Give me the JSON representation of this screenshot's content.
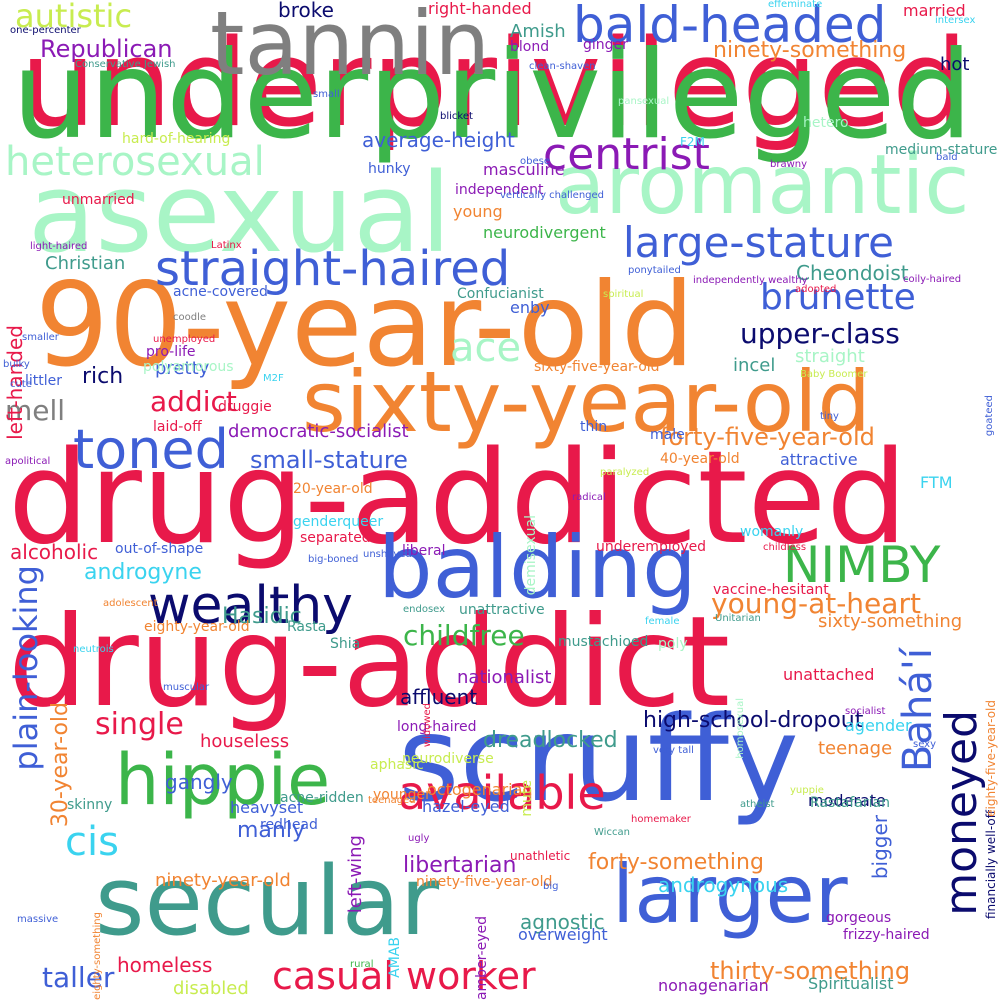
{
  "palette": {
    "red": "#e8194a",
    "blue": "#3f5fd6",
    "green": "#3cb54a",
    "orange": "#f18432",
    "mint": "#a8f5c6",
    "gray": "#7f7f7f",
    "teal": "#3f9b8c",
    "purple": "#8b1ab5",
    "navy": "#0b0b6e",
    "cyan": "#3ad3ef",
    "lime": "#c8ec50"
  },
  "words": [
    {
      "text": "underprivileged",
      "color": "red"
    },
    {
      "text": "underprivileged",
      "color": "green"
    },
    {
      "text": "tannin",
      "color": "gray"
    },
    {
      "text": "asexual",
      "color": "mint"
    },
    {
      "text": "aromantic",
      "color": "mint"
    },
    {
      "text": "90-year-old",
      "color": "orange"
    },
    {
      "text": "sixty-year-old",
      "color": "orange"
    },
    {
      "text": "drug-addicted",
      "color": "red"
    },
    {
      "text": "drug-addict",
      "color": "red"
    },
    {
      "text": "balding",
      "color": "blue"
    },
    {
      "text": "scruffy",
      "color": "blue"
    },
    {
      "text": "secular",
      "color": "teal"
    },
    {
      "text": "larger",
      "color": "blue"
    },
    {
      "text": "hippie",
      "color": "green"
    },
    {
      "text": "bald-headed",
      "color": "blue"
    },
    {
      "text": "heterosexual",
      "color": "mint"
    },
    {
      "text": "centrist",
      "color": "purple"
    },
    {
      "text": "straight-haired",
      "color": "blue"
    },
    {
      "text": "large-stature",
      "color": "blue"
    },
    {
      "text": "brunette",
      "color": "blue"
    },
    {
      "text": "toned",
      "color": "blue"
    },
    {
      "text": "wealthy",
      "color": "navy"
    },
    {
      "text": "NIMBY",
      "color": "green"
    },
    {
      "text": "available",
      "color": "red"
    },
    {
      "text": "casual worker",
      "color": "red"
    },
    {
      "text": "plain-looking",
      "color": "blue"
    },
    {
      "text": "Bahá'í",
      "color": "blue"
    },
    {
      "text": "moneyed",
      "color": "navy"
    },
    {
      "text": "cis",
      "color": "cyan"
    },
    {
      "text": "ace",
      "color": "mint"
    },
    {
      "text": "upper-class",
      "color": "navy"
    },
    {
      "text": "addict",
      "color": "red"
    },
    {
      "text": "mell",
      "color": "gray"
    },
    {
      "text": "autistic",
      "color": "lime"
    },
    {
      "text": "Republican",
      "color": "purple"
    },
    {
      "text": "broke",
      "color": "navy"
    },
    {
      "text": "right-handed",
      "color": "red"
    },
    {
      "text": "Amish",
      "color": "teal"
    },
    {
      "text": "ninety-something",
      "color": "orange"
    },
    {
      "text": "blond",
      "color": "purple"
    },
    {
      "text": "ginger",
      "color": "purple"
    },
    {
      "text": "married",
      "color": "red"
    },
    {
      "text": "hot",
      "color": "navy"
    },
    {
      "text": "average-height",
      "color": "blue"
    },
    {
      "text": "masculine",
      "color": "purple"
    },
    {
      "text": "Cheondoist",
      "color": "teal"
    },
    {
      "text": "small-stature",
      "color": "blue"
    },
    {
      "text": "forty-five-year-old",
      "color": "orange"
    },
    {
      "text": "democratic-socialist",
      "color": "purple"
    },
    {
      "text": "young-at-heart",
      "color": "orange"
    },
    {
      "text": "androgyne",
      "color": "cyan"
    },
    {
      "text": "Hasidic",
      "color": "teal"
    },
    {
      "text": "childfree",
      "color": "green"
    },
    {
      "text": "single",
      "color": "red"
    },
    {
      "text": "houseless",
      "color": "red"
    },
    {
      "text": "high-school-dropout",
      "color": "navy"
    },
    {
      "text": "dreadlocked",
      "color": "teal"
    },
    {
      "text": "libertarian",
      "color": "purple"
    },
    {
      "text": "forty-something",
      "color": "orange"
    },
    {
      "text": "thirty-something",
      "color": "orange"
    },
    {
      "text": "androgynous",
      "color": "cyan"
    },
    {
      "text": "manly",
      "color": "blue"
    },
    {
      "text": "gangly",
      "color": "blue"
    },
    {
      "text": "taller",
      "color": "blue"
    },
    {
      "text": "homeless",
      "color": "red"
    },
    {
      "text": "disabled",
      "color": "lime"
    },
    {
      "text": "30-year-old",
      "color": "orange"
    },
    {
      "text": "left-handed",
      "color": "red"
    },
    {
      "text": "rich",
      "color": "navy"
    },
    {
      "text": "pretty",
      "color": "blue"
    },
    {
      "text": "incel",
      "color": "teal"
    },
    {
      "text": "straight",
      "color": "mint"
    },
    {
      "text": "alcoholic",
      "color": "red"
    },
    {
      "text": "sixty-something",
      "color": "orange"
    },
    {
      "text": "affluent",
      "color": "navy"
    },
    {
      "text": "nationalist",
      "color": "purple"
    },
    {
      "text": "octogenarian",
      "color": "orange"
    },
    {
      "text": "hazel-eyed",
      "color": "blue"
    },
    {
      "text": "heavyset",
      "color": "blue"
    },
    {
      "text": "redhead",
      "color": "blue"
    },
    {
      "text": "ninety-year-old",
      "color": "orange"
    },
    {
      "text": "ninety-five-year-old",
      "color": "orange"
    },
    {
      "text": "agnostic",
      "color": "teal"
    },
    {
      "text": "overweight",
      "color": "blue"
    },
    {
      "text": "Spiritualist",
      "color": "teal"
    },
    {
      "text": "nonagenarian",
      "color": "purple"
    },
    {
      "text": "moderate",
      "color": "navy"
    },
    {
      "text": "bigger",
      "color": "blue"
    },
    {
      "text": "left-wing",
      "color": "purple"
    },
    {
      "text": "financially well-off",
      "color": "navy"
    },
    {
      "text": "eighty-five-year-old",
      "color": "orange"
    },
    {
      "text": "teenage",
      "color": "orange"
    },
    {
      "text": "agender",
      "color": "cyan"
    },
    {
      "text": "unattached",
      "color": "red"
    },
    {
      "text": "Rastafarian",
      "color": "teal"
    },
    {
      "text": "young",
      "color": "orange"
    },
    {
      "text": "independent",
      "color": "purple"
    },
    {
      "text": "neurodivergent",
      "color": "green"
    },
    {
      "text": "Christian",
      "color": "teal"
    },
    {
      "text": "Confucianist",
      "color": "teal"
    },
    {
      "text": "enby",
      "color": "blue"
    },
    {
      "text": "hard-of-hearing",
      "color": "lime"
    },
    {
      "text": "hunky",
      "color": "blue"
    },
    {
      "text": "unmarried",
      "color": "red"
    },
    {
      "text": "acne-covered",
      "color": "blue"
    },
    {
      "text": "pro-life",
      "color": "purple"
    },
    {
      "text": "polyamorous",
      "color": "mint"
    },
    {
      "text": "littler",
      "color": "blue"
    },
    {
      "text": "laid-off",
      "color": "red"
    },
    {
      "text": "druggie",
      "color": "red"
    },
    {
      "text": "sixty-five-year-old",
      "color": "orange"
    },
    {
      "text": "thin",
      "color": "blue"
    },
    {
      "text": "male",
      "color": "blue"
    },
    {
      "text": "40-year-old",
      "color": "orange"
    },
    {
      "text": "attractive",
      "color": "blue"
    },
    {
      "text": "FTM",
      "color": "cyan"
    },
    {
      "text": "20-year-old",
      "color": "orange"
    },
    {
      "text": "genderqueer",
      "color": "cyan"
    },
    {
      "text": "separated",
      "color": "red"
    },
    {
      "text": "liberal",
      "color": "purple"
    },
    {
      "text": "underemployed",
      "color": "red"
    },
    {
      "text": "out-of-shape",
      "color": "blue"
    },
    {
      "text": "womanly",
      "color": "cyan"
    },
    {
      "text": "vaccine-hesitant",
      "color": "red"
    },
    {
      "text": "unattractive",
      "color": "teal"
    },
    {
      "text": "eighty-year-old",
      "color": "orange"
    },
    {
      "text": "Rasta",
      "color": "teal"
    },
    {
      "text": "Shia",
      "color": "teal"
    },
    {
      "text": "mustachioed",
      "color": "teal"
    },
    {
      "text": "poly",
      "color": "mint"
    },
    {
      "text": "long-haired",
      "color": "purple"
    },
    {
      "text": "neurodiverse",
      "color": "lime"
    },
    {
      "text": "aphasic",
      "color": "lime"
    },
    {
      "text": "acne-ridden",
      "color": "teal"
    },
    {
      "text": "younger",
      "color": "orange"
    },
    {
      "text": "skinny",
      "color": "teal"
    },
    {
      "text": "unathletic",
      "color": "red"
    },
    {
      "text": "hetero",
      "color": "mint"
    },
    {
      "text": "F2M",
      "color": "cyan"
    },
    {
      "text": "medium-stature",
      "color": "teal"
    },
    {
      "text": "demisexual",
      "color": "mint"
    },
    {
      "text": "mute",
      "color": "lime"
    },
    {
      "text": "AMAB",
      "color": "cyan"
    },
    {
      "text": "amber-eyed",
      "color": "purple"
    },
    {
      "text": "gorgeous",
      "color": "purple"
    },
    {
      "text": "frizzy-haired",
      "color": "purple"
    },
    {
      "text": "one-percenter",
      "color": "navy"
    },
    {
      "text": "Conservative Jewish",
      "color": "teal"
    },
    {
      "text": "clean-shaven",
      "color": "blue"
    },
    {
      "text": "effeminate",
      "color": "cyan"
    },
    {
      "text": "intersex",
      "color": "cyan"
    },
    {
      "text": "pansexual",
      "color": "mint"
    },
    {
      "text": "brawny",
      "color": "purple"
    },
    {
      "text": "bald",
      "color": "blue"
    },
    {
      "text": "small",
      "color": "blue"
    },
    {
      "text": "blicket",
      "color": "navy"
    },
    {
      "text": "obese",
      "color": "blue"
    },
    {
      "text": "vertically challenged",
      "color": "blue"
    },
    {
      "text": "light-haired",
      "color": "purple"
    },
    {
      "text": "Latinx",
      "color": "red"
    },
    {
      "text": "ponytailed",
      "color": "blue"
    },
    {
      "text": "independently wealthy",
      "color": "purple"
    },
    {
      "text": "adopted",
      "color": "red"
    },
    {
      "text": "coily-haired",
      "color": "purple"
    },
    {
      "text": "spiritual",
      "color": "lime"
    },
    {
      "text": "coodle",
      "color": "gray"
    },
    {
      "text": "smaller",
      "color": "blue"
    },
    {
      "text": "unemployed",
      "color": "red"
    },
    {
      "text": "bulky",
      "color": "blue"
    },
    {
      "text": "M2F",
      "color": "cyan"
    },
    {
      "text": "cute",
      "color": "blue"
    },
    {
      "text": "Baby Boomer",
      "color": "lime"
    },
    {
      "text": "goateed",
      "color": "blue"
    },
    {
      "text": "paralyzed",
      "color": "lime"
    },
    {
      "text": "radical",
      "color": "purple"
    },
    {
      "text": "tiny",
      "color": "blue"
    },
    {
      "text": "apolitical",
      "color": "purple"
    },
    {
      "text": "big-boned",
      "color": "blue"
    },
    {
      "text": "unshaved",
      "color": "blue"
    },
    {
      "text": "childless",
      "color": "red"
    },
    {
      "text": "adolescent",
      "color": "orange"
    },
    {
      "text": "endosex",
      "color": "teal"
    },
    {
      "text": "Unitarian",
      "color": "teal"
    },
    {
      "text": "female",
      "color": "cyan"
    },
    {
      "text": "neutrois",
      "color": "cyan"
    },
    {
      "text": "muscular",
      "color": "blue"
    },
    {
      "text": "socialist",
      "color": "purple"
    },
    {
      "text": "homosexual",
      "color": "mint"
    },
    {
      "text": "widowed",
      "color": "red"
    },
    {
      "text": "very tall",
      "color": "blue"
    },
    {
      "text": "yuppie",
      "color": "lime"
    },
    {
      "text": "sexy",
      "color": "blue"
    },
    {
      "text": "teenaged",
      "color": "orange"
    },
    {
      "text": "ugly",
      "color": "purple"
    },
    {
      "text": "homemaker",
      "color": "red"
    },
    {
      "text": "atheist",
      "color": "teal"
    },
    {
      "text": "Wiccan",
      "color": "teal"
    },
    {
      "text": "big",
      "color": "blue"
    },
    {
      "text": "massive",
      "color": "blue"
    },
    {
      "text": "eighty-something",
      "color": "orange"
    },
    {
      "text": "rural",
      "color": "green"
    }
  ]
}
